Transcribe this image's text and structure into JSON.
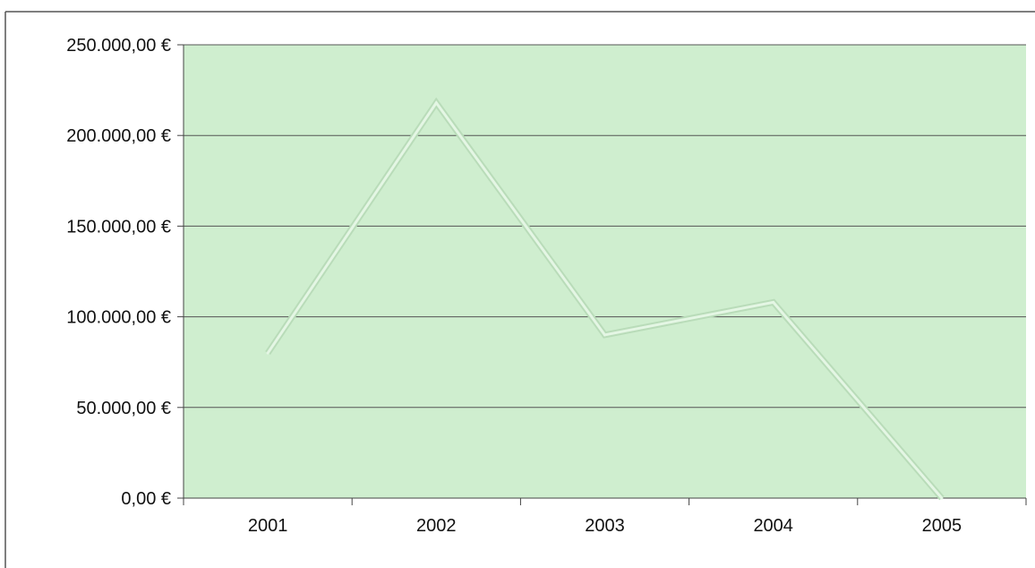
{
  "chart_data": {
    "type": "line",
    "categories": [
      "2001",
      "2002",
      "2003",
      "2004",
      "2005"
    ],
    "series": [
      {
        "values": [
          80000,
          218000,
          90000,
          108000,
          0
        ]
      }
    ],
    "y_tick_labels": [
      "0,00 €",
      "50.000,00 €",
      "100.000,00 €",
      "150.000,00 €",
      "200.000,00 €",
      "250.000,00 €"
    ],
    "y_ticks": [
      0,
      50000,
      100000,
      150000,
      200000,
      250000
    ],
    "ylim": [
      0,
      250000
    ],
    "grid": true,
    "legend": "none",
    "colors": {
      "plot_background": "#cfeecf",
      "line": "#e4f6e4"
    }
  }
}
